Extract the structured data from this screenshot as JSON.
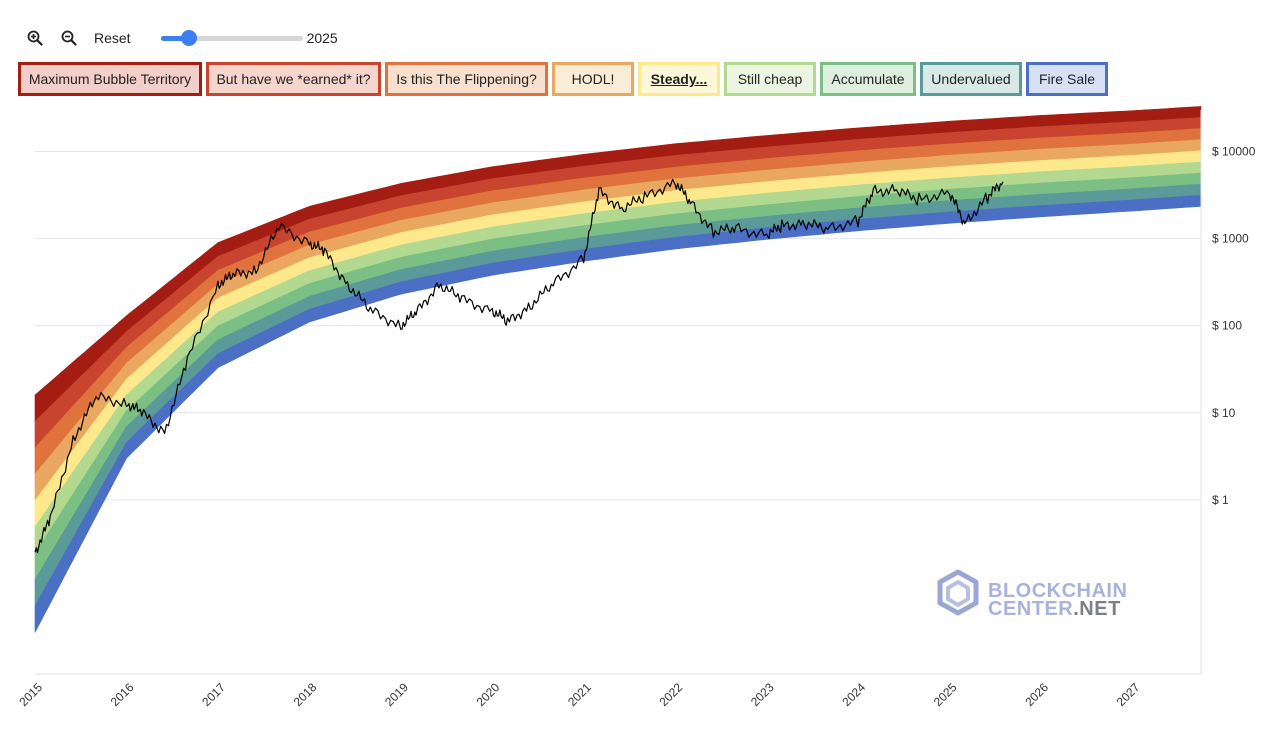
{
  "toolbar": {
    "zoom_in_icon": "magnifier-plus-icon",
    "zoom_out_icon": "magnifier-minus-icon",
    "reset_label": "Reset",
    "slider_year": "2025",
    "slider_fraction": 0.2
  },
  "bands": [
    {
      "label": "Maximum Bubble Territory",
      "color": "#a51d12",
      "fill": "#f3cfc9",
      "active": false
    },
    {
      "label": "But have we *earned* it?",
      "color": "#c8442e",
      "fill": "#f6d5cd",
      "active": false
    },
    {
      "label": "Is this The Flippening?",
      "color": "#e0733d",
      "fill": "#f9dfcd",
      "active": false
    },
    {
      "label": "HODL!",
      "color": "#eaa75f",
      "fill": "#fbecd6",
      "active": false
    },
    {
      "label": "Steady...",
      "color": "#fde88c",
      "fill": "#fef8da",
      "active": true
    },
    {
      "label": "Still cheap",
      "color": "#b3d88f",
      "fill": "#ecf5e1",
      "active": false
    },
    {
      "label": "Accumulate",
      "color": "#7cbf84",
      "fill": "#dfefdf",
      "active": false
    },
    {
      "label": "Undervalued",
      "color": "#5a9a98",
      "fill": "#d9e9e8",
      "active": false
    },
    {
      "label": "Fire Sale",
      "color": "#4a6fc4",
      "fill": "#d7e1f4",
      "active": false
    }
  ],
  "watermark": {
    "line1": "BLOCKCHAIN",
    "line2a": "CENTER",
    "line2b": ".NET"
  },
  "chart_data": {
    "type": "area",
    "y_scale": "log",
    "ylim": [
      0.01,
      30000
    ],
    "x_range": [
      "2015",
      "2027-10"
    ],
    "yticks": [
      {
        "value": 10000,
        "label": "$ 10000"
      },
      {
        "value": 1000,
        "label": "$ 1000"
      },
      {
        "value": 100,
        "label": "$ 100"
      },
      {
        "value": 10,
        "label": "$ 10"
      },
      {
        "value": 1,
        "label": "$ 1"
      }
    ],
    "xticks": [
      "2015",
      "2016",
      "2017",
      "2018",
      "2019",
      "2020",
      "2021",
      "2022",
      "2023",
      "2024",
      "2025",
      "2026",
      "2027"
    ],
    "rainbow_bands_top_to_bottom": [
      {
        "color": "#a51d12"
      },
      {
        "color": "#c8442e"
      },
      {
        "color": "#e0733d"
      },
      {
        "color": "#eaa75f"
      },
      {
        "color": "#fde88c"
      },
      {
        "color": "#b3d88f"
      },
      {
        "color": "#7cbf84"
      },
      {
        "color": "#5a9a98"
      },
      {
        "color": "#4a6fc4"
      }
    ],
    "rainbow_boundaries_top_to_bottom": [
      {
        "x": [
          "2015",
          "2016",
          "2017",
          "2018",
          "2019",
          "2020",
          "2021",
          "2022",
          "2023",
          "2024",
          "2025",
          "2026",
          "2027",
          "2027-10"
        ],
        "values": [
          16,
          130,
          900,
          2350,
          4300,
          6700,
          9300,
          12300,
          15300,
          18700,
          22300,
          26000,
          29500,
          33000
        ]
      },
      {
        "x": [
          "2015",
          "2016",
          "2017",
          "2018",
          "2019",
          "2020",
          "2021",
          "2022",
          "2023",
          "2024",
          "2025",
          "2026",
          "2027",
          "2027-10"
        ],
        "values": [
          0.03,
          3,
          33,
          110,
          230,
          380,
          550,
          760,
          980,
          1230,
          1500,
          1780,
          2070,
          2350
        ]
      }
    ],
    "series": [
      {
        "color": "#000000",
        "x": [
          "2015",
          "2015-03",
          "2015-06",
          "2015-09",
          "2016",
          "2016-03",
          "2016-06",
          "2016-09",
          "2017",
          "2017-03",
          "2017-06",
          "2017-09",
          "2018",
          "2018-03",
          "2018-06",
          "2018-09",
          "2019",
          "2019-03",
          "2019-06",
          "2019-09",
          "2020",
          "2020-03",
          "2020-06",
          "2020-09",
          "2021",
          "2021-03",
          "2021-06",
          "2021-09",
          "2022",
          "2022-03",
          "2022-06",
          "2022-09",
          "2023",
          "2023-03",
          "2023-06",
          "2023-09",
          "2024",
          "2024-03",
          "2024-06",
          "2024-09",
          "2025",
          "2025-03",
          "2025-06",
          "2025-08"
        ],
        "values": [
          0.25,
          0.6,
          5,
          15,
          13,
          10,
          6,
          40,
          300,
          380,
          440,
          1350,
          900,
          700,
          300,
          150,
          100,
          140,
          300,
          200,
          150,
          110,
          170,
          300,
          600,
          3500,
          2200,
          3000,
          4500,
          2600,
          1200,
          1300,
          1100,
          1400,
          1500,
          1300,
          1600,
          3500,
          3600,
          2800,
          3400,
          1500,
          3000,
          4500
        ]
      }
    ]
  }
}
